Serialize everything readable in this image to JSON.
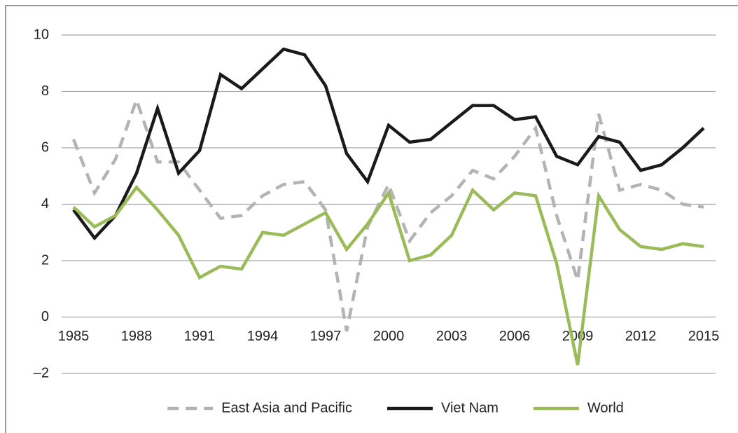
{
  "chart_data": {
    "type": "line",
    "x": [
      1985,
      1986,
      1987,
      1988,
      1989,
      1990,
      1991,
      1992,
      1993,
      1994,
      1995,
      1996,
      1997,
      1998,
      1999,
      2000,
      2001,
      2002,
      2003,
      2004,
      2005,
      2006,
      2007,
      2008,
      2009,
      2010,
      2011,
      2012,
      2013,
      2014,
      2015
    ],
    "xlim": [
      1985,
      2015
    ],
    "xticks": [
      1985,
      1988,
      1991,
      1994,
      1997,
      2000,
      2003,
      2006,
      2009,
      2012,
      2015
    ],
    "ylim": [
      -2,
      10
    ],
    "yticks": [
      {
        "value": -2,
        "label": "–2"
      },
      0,
      2,
      4,
      6,
      8,
      10
    ],
    "grid": true,
    "legend": "bottom",
    "series": [
      {
        "name": "East Asia and Pacific",
        "color": "#b3b3b3",
        "line_style": "dashed",
        "values": [
          6.3,
          4.4,
          5.6,
          7.7,
          5.5,
          5.5,
          4.5,
          3.5,
          3.6,
          4.3,
          4.7,
          4.8,
          3.8,
          -0.5,
          3.2,
          4.7,
          2.7,
          3.7,
          4.3,
          5.2,
          4.9,
          5.7,
          6.7,
          3.6,
          1.3,
          7.2,
          4.5,
          4.7,
          4.5,
          4.0,
          3.9
        ]
      },
      {
        "name": "Viet Nam",
        "color": "#1a1a1a",
        "line_style": "solid",
        "values": [
          3.8,
          2.8,
          3.6,
          5.1,
          7.4,
          5.1,
          5.9,
          8.6,
          8.1,
          8.8,
          9.5,
          9.3,
          8.2,
          5.8,
          4.8,
          6.8,
          6.2,
          6.3,
          6.9,
          7.5,
          7.5,
          7.0,
          7.1,
          5.7,
          5.4,
          6.4,
          6.2,
          5.2,
          5.4,
          6.0,
          6.7
        ]
      },
      {
        "name": "World",
        "color": "#9bbb59",
        "line_style": "solid",
        "values": [
          3.9,
          3.2,
          3.6,
          4.6,
          3.8,
          2.9,
          1.4,
          1.8,
          1.7,
          3.0,
          2.9,
          3.3,
          3.7,
          2.4,
          3.3,
          4.4,
          2.0,
          2.2,
          2.9,
          4.5,
          3.8,
          4.4,
          4.3,
          1.9,
          -1.7,
          4.3,
          3.1,
          2.5,
          2.4,
          2.6,
          2.5
        ]
      }
    ]
  }
}
